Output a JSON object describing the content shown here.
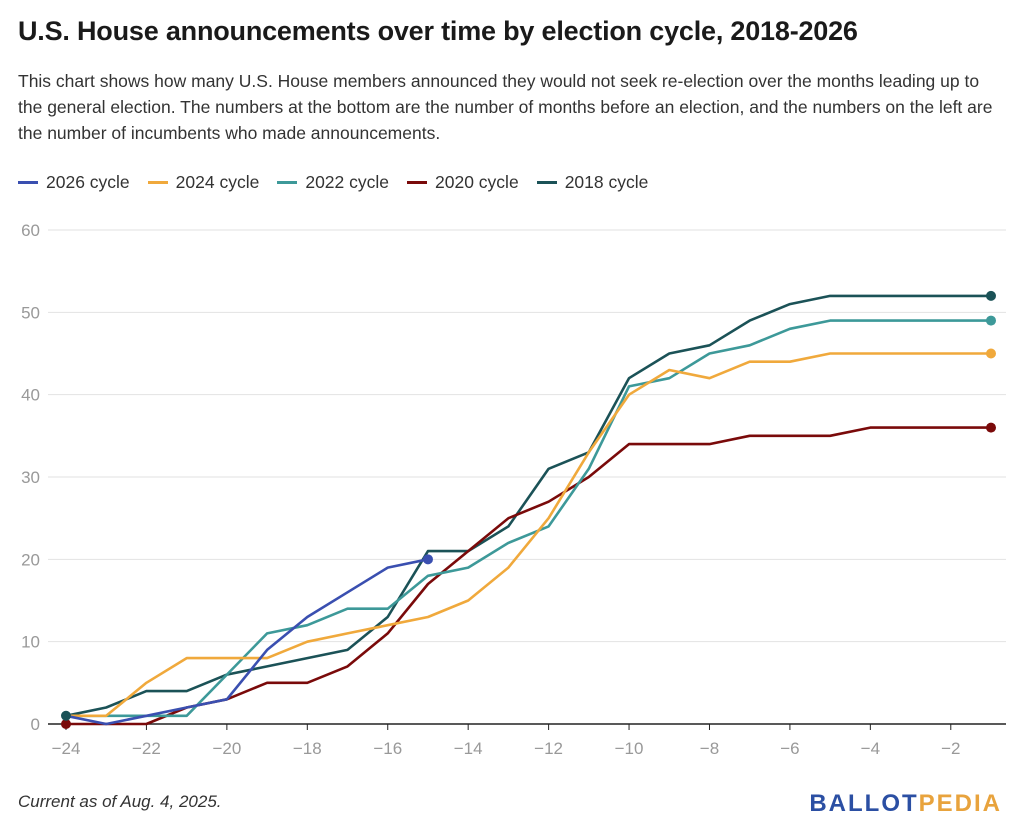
{
  "title": "U.S. House announcements over time by election cycle, 2018-2026",
  "subtitle": "This chart shows how many U.S. House members announced they would not seek re-election over the months leading up to the general election. The numbers at the bottom are the number of months before an election, and the numbers on the left are the number of incumbents who made announcements.",
  "footnote": "Current as of Aug. 4, 2025.",
  "brand": {
    "part1": "BALLOT",
    "part2": "PEDIA"
  },
  "colors": {
    "cycle2026": "#3a4fb0",
    "cycle2024": "#f0a93c",
    "cycle2022": "#3d9999",
    "cycle2020": "#7a0a0a",
    "cycle2018": "#1b5257"
  },
  "chart_data": {
    "type": "line",
    "xlabel": "",
    "ylabel": "",
    "xlim": [
      -24,
      -1
    ],
    "ylim": [
      0,
      60
    ],
    "x_ticks": [
      -24,
      -22,
      -20,
      -18,
      -16,
      -14,
      -12,
      -10,
      -8,
      -6,
      -4,
      -2
    ],
    "y_ticks": [
      0,
      10,
      20,
      30,
      40,
      50,
      60
    ],
    "grid": "horizontal",
    "legend_position": "top-left",
    "series": [
      {
        "name": "2026 cycle",
        "color": "#3a4fb0",
        "x": [
          -24,
          -23,
          -22,
          -21,
          -20,
          -19,
          -18,
          -17,
          -16,
          -15
        ],
        "y": [
          1,
          0,
          1,
          2,
          3,
          9,
          13,
          16,
          19,
          20
        ]
      },
      {
        "name": "2024 cycle",
        "color": "#f0a93c",
        "x": [
          -24,
          -23,
          -22,
          -21,
          -20,
          -19,
          -18,
          -17,
          -16,
          -15,
          -14,
          -13,
          -12,
          -11,
          -10,
          -9,
          -8,
          -7,
          -6,
          -5,
          -4,
          -3,
          -2,
          -1
        ],
        "y": [
          1,
          1,
          5,
          8,
          8,
          8,
          10,
          11,
          12,
          13,
          15,
          19,
          25,
          33,
          40,
          43,
          42,
          44,
          44,
          45,
          45,
          45,
          45,
          45
        ]
      },
      {
        "name": "2022 cycle",
        "color": "#3d9999",
        "x": [
          -24,
          -23,
          -22,
          -21,
          -20,
          -19,
          -18,
          -17,
          -16,
          -15,
          -14,
          -13,
          -12,
          -11,
          -10,
          -9,
          -8,
          -7,
          -6,
          -5,
          -4,
          -3,
          -2,
          -1
        ],
        "y": [
          1,
          1,
          1,
          1,
          6,
          11,
          12,
          14,
          14,
          18,
          19,
          22,
          24,
          31,
          41,
          42,
          45,
          46,
          48,
          49,
          49,
          49,
          49,
          49
        ]
      },
      {
        "name": "2020 cycle",
        "color": "#7a0a0a",
        "x": [
          -24,
          -23,
          -22,
          -21,
          -20,
          -19,
          -18,
          -17,
          -16,
          -15,
          -14,
          -13,
          -12,
          -11,
          -10,
          -9,
          -8,
          -7,
          -6,
          -5,
          -4,
          -3,
          -2,
          -1
        ],
        "y": [
          0,
          0,
          0,
          2,
          3,
          5,
          5,
          7,
          11,
          17,
          21,
          25,
          27,
          30,
          34,
          34,
          34,
          35,
          35,
          35,
          36,
          36,
          36,
          36
        ]
      },
      {
        "name": "2018 cycle",
        "color": "#1b5257",
        "x": [
          -24,
          -23,
          -22,
          -21,
          -20,
          -19,
          -18,
          -17,
          -16,
          -15,
          -14,
          -13,
          -12,
          -11,
          -10,
          -9,
          -8,
          -7,
          -6,
          -5,
          -4,
          -3,
          -2,
          -1
        ],
        "y": [
          1,
          2,
          4,
          4,
          6,
          7,
          8,
          9,
          13,
          21,
          21,
          24,
          31,
          33,
          42,
          45,
          46,
          49,
          51,
          52,
          52,
          52,
          52,
          52
        ]
      }
    ]
  }
}
